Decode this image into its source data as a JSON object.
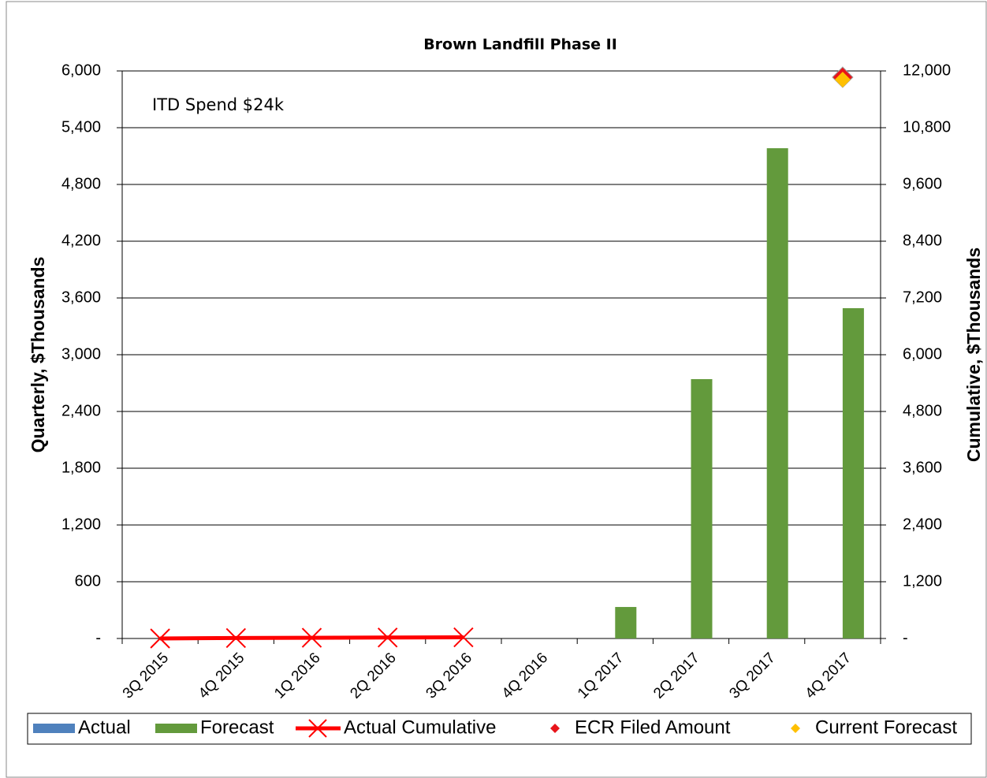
{
  "chart_data": {
    "type": "bar",
    "title": "Brown Landfill Phase II",
    "annotation": "ITD Spend  $24k",
    "y_label": "Quarterly, $Thousands",
    "y2_label": "Cumulative, $Thousands",
    "categories": [
      "3Q 2015",
      "4Q 2015",
      "1Q 2016",
      "2Q 2016",
      "3Q 2016",
      "4Q 2016",
      "1Q 2017",
      "2Q 2017",
      "3Q 2017",
      "4Q 2017"
    ],
    "series": [
      {
        "name": "Actual",
        "type": "bar",
        "color": "#4f81bd",
        "values": [
          0,
          0,
          0,
          0,
          0,
          null,
          null,
          null,
          null,
          null
        ]
      },
      {
        "name": "Forecast",
        "type": "bar",
        "color": "#639a3c",
        "values": [
          null,
          null,
          null,
          null,
          null,
          null,
          333,
          2742,
          5183,
          3492
        ]
      },
      {
        "name": "Actual Cumulative",
        "type": "line",
        "axis": "y2",
        "color": "#ff0000",
        "values": [
          0,
          10,
          15,
          20,
          24,
          null,
          null,
          null,
          null,
          null
        ]
      },
      {
        "name": "ECR Filed Amount",
        "type": "scatter",
        "axis": "y2",
        "color": "#e8141a",
        "values": [
          null,
          null,
          null,
          null,
          null,
          null,
          null,
          null,
          null,
          11867
        ]
      },
      {
        "name": "Current Forecast",
        "type": "scatter",
        "axis": "y2",
        "color": "#ffc000",
        "values": [
          null,
          null,
          null,
          null,
          null,
          null,
          null,
          null,
          null,
          11817
        ]
      }
    ],
    "ylim": [
      0,
      6000
    ],
    "yticks": [
      {
        "value": 0,
        "label": "-"
      },
      600,
      {
        "value": 1200,
        "label": "1,200"
      },
      {
        "value": 1800,
        "label": "1,800"
      },
      {
        "value": 2400,
        "label": "2,400"
      },
      {
        "value": 3000,
        "label": "3,000"
      },
      {
        "value": 3600,
        "label": "3,600"
      },
      {
        "value": 4200,
        "label": "4,200"
      },
      {
        "value": 4800,
        "label": "4,800"
      },
      {
        "value": 5400,
        "label": "5,400"
      },
      {
        "value": 6000,
        "label": "6,000"
      }
    ],
    "y2lim": [
      0,
      12000
    ],
    "y2ticks": [
      {
        "value": 0,
        "label": "-"
      },
      {
        "value": 1200,
        "label": "1,200"
      },
      {
        "value": 2400,
        "label": "2,400"
      },
      {
        "value": 3600,
        "label": "3,600"
      },
      {
        "value": 4800,
        "label": "4,800"
      },
      {
        "value": 6000,
        "label": "6,000"
      },
      {
        "value": 7200,
        "label": "7,200"
      },
      {
        "value": 8400,
        "label": "8,400"
      },
      {
        "value": 9600,
        "label": "9,600"
      },
      {
        "value": 10800,
        "label": "10,800"
      },
      {
        "value": 12000,
        "label": "12,000"
      }
    ],
    "grid": true,
    "legend": "bottom"
  }
}
